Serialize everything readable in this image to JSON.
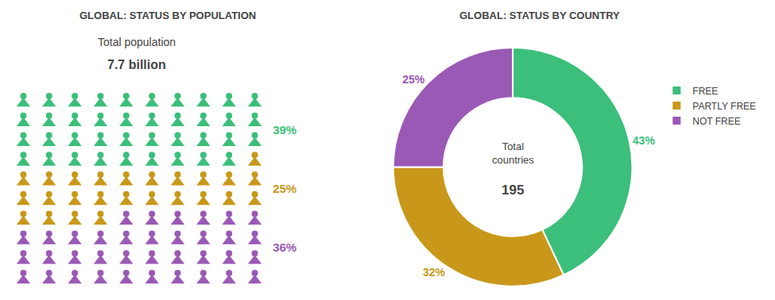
{
  "chart_data": [
    {
      "type": "waffle",
      "title": "GLOBAL: STATUS BY POPULATION",
      "annotations": [
        "Total population",
        "7.7 billion"
      ],
      "categories": [
        "FREE",
        "PARTLY FREE",
        "NOT FREE"
      ],
      "values": [
        39,
        25,
        36
      ],
      "value_labels": [
        "39%",
        "25%",
        "36%"
      ],
      "colors": [
        "#3bbf7a",
        "#c9981a",
        "#9b59b6"
      ],
      "data_labels": true,
      "tick_labels": false
    },
    {
      "type": "donut",
      "title": "GLOBAL: STATUS BY COUNTRY",
      "annotations": [
        "Total\ncountries",
        "195"
      ],
      "categories": [
        "FREE",
        "PARTLY FREE",
        "NOT FREE"
      ],
      "values": [
        43,
        32,
        25
      ],
      "value_labels": [
        "43%",
        "32%",
        "25%"
      ],
      "colors": [
        "#3bbf7a",
        "#c9981a",
        "#9b59b6"
      ],
      "data_labels": true,
      "legend": "right"
    }
  ]
}
